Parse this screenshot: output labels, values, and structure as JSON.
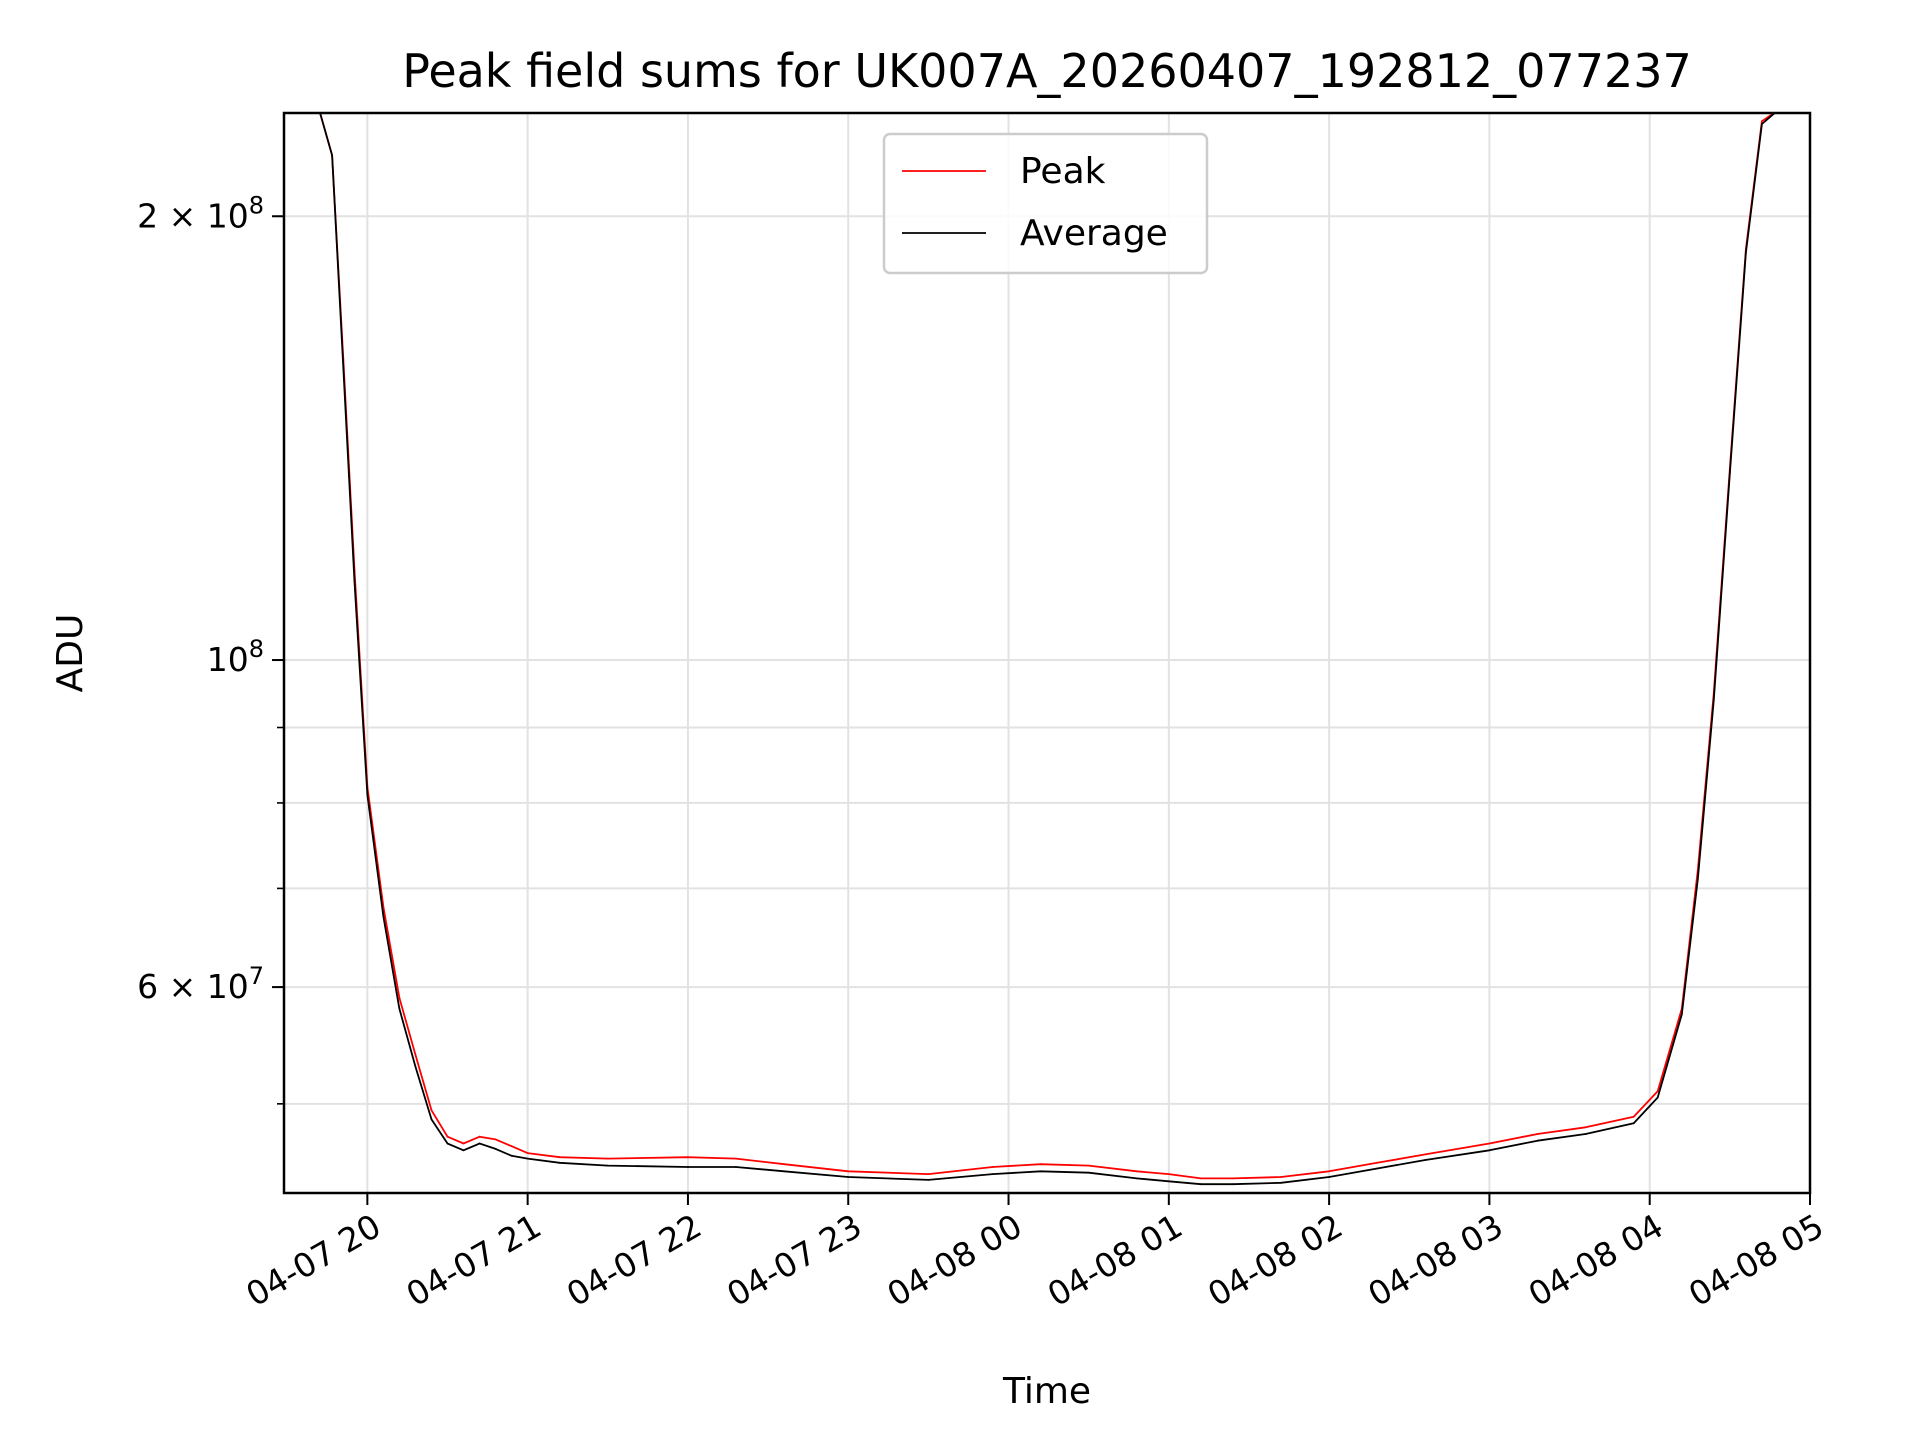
{
  "chart_data": {
    "type": "line",
    "title": "Peak field sums for UK007A_20260407_192812_077237",
    "xlabel": "Time",
    "ylabel": "ADU",
    "yscale": "log",
    "grid": true,
    "legend_position": "upper center",
    "xlim": [
      19.48,
      29.0
    ],
    "ylim": [
      43500000,
      235000000
    ],
    "x_ticks": [
      {
        "value": 20,
        "label": "04-07 20"
      },
      {
        "value": 21,
        "label": "04-07 21"
      },
      {
        "value": 22,
        "label": "04-07 22"
      },
      {
        "value": 23,
        "label": "04-07 23"
      },
      {
        "value": 24,
        "label": "04-08 00"
      },
      {
        "value": 25,
        "label": "04-08 01"
      },
      {
        "value": 26,
        "label": "04-08 02"
      },
      {
        "value": 27,
        "label": "04-08 03"
      },
      {
        "value": 28,
        "label": "04-08 04"
      },
      {
        "value": 29,
        "label": "04-08 05"
      }
    ],
    "y_major_ticks": [
      {
        "value": 200000000,
        "base": "2 × 10",
        "exp": "8"
      },
      {
        "value": 100000000,
        "base": "10",
        "exp": "8"
      },
      {
        "value": 60000000,
        "base": "6 × 10",
        "exp": "7"
      }
    ],
    "y_grid_values": [
      200000000,
      100000000,
      90000000,
      80000000,
      70000000,
      60000000,
      50000000
    ],
    "series": [
      {
        "name": "Peak",
        "color": "#ff0000",
        "x": [
          19.48,
          19.7,
          19.78,
          19.85,
          19.92,
          20.0,
          20.1,
          20.2,
          20.3,
          20.4,
          20.5,
          20.6,
          20.7,
          20.8,
          20.9,
          21.0,
          21.2,
          21.5,
          22.0,
          22.3,
          22.6,
          23.0,
          23.5,
          23.9,
          24.2,
          24.5,
          24.8,
          25.0,
          25.2,
          25.4,
          25.7,
          26.0,
          26.3,
          26.6,
          27.0,
          27.3,
          27.6,
          27.9,
          28.05,
          28.2,
          28.3,
          28.4,
          28.5,
          28.6,
          28.7,
          28.8,
          28.9,
          29.0
        ],
        "y": [
          236000000,
          236000000,
          220000000,
          160000000,
          115000000,
          82000000,
          68000000,
          59000000,
          54000000,
          49500000,
          47500000,
          47000000,
          47500000,
          47300000,
          46800000,
          46300000,
          46000000,
          45900000,
          46000000,
          45900000,
          45500000,
          45000000,
          44800000,
          45300000,
          45500000,
          45400000,
          45000000,
          44800000,
          44500000,
          44500000,
          44600000,
          45000000,
          45600000,
          46200000,
          47000000,
          47700000,
          48200000,
          49000000,
          51000000,
          58000000,
          72000000,
          95000000,
          135000000,
          190000000,
          232000000,
          236000000,
          236000000,
          236000000
        ]
      },
      {
        "name": "Average",
        "color": "#000000",
        "x": [
          19.48,
          19.7,
          19.78,
          19.85,
          19.92,
          20.0,
          20.1,
          20.2,
          20.3,
          20.4,
          20.5,
          20.6,
          20.7,
          20.8,
          20.9,
          21.0,
          21.2,
          21.5,
          22.0,
          22.3,
          22.6,
          23.0,
          23.5,
          23.9,
          24.2,
          24.5,
          24.8,
          25.0,
          25.2,
          25.4,
          25.7,
          26.0,
          26.3,
          26.6,
          27.0,
          27.3,
          27.6,
          27.9,
          28.05,
          28.2,
          28.3,
          28.4,
          28.5,
          28.6,
          28.7,
          28.8,
          28.9,
          29.0
        ],
        "y": [
          236000000,
          236000000,
          220000000,
          158000000,
          113000000,
          81000000,
          67000000,
          58000000,
          53000000,
          48800000,
          47000000,
          46500000,
          47000000,
          46600000,
          46100000,
          45900000,
          45600000,
          45400000,
          45300000,
          45300000,
          45000000,
          44600000,
          44400000,
          44800000,
          45000000,
          44900000,
          44500000,
          44300000,
          44100000,
          44100000,
          44200000,
          44600000,
          45200000,
          45800000,
          46500000,
          47200000,
          47700000,
          48500000,
          50500000,
          57500000,
          71000000,
          94000000,
          134000000,
          189000000,
          231000000,
          236000000,
          236000000,
          236000000
        ]
      }
    ]
  }
}
